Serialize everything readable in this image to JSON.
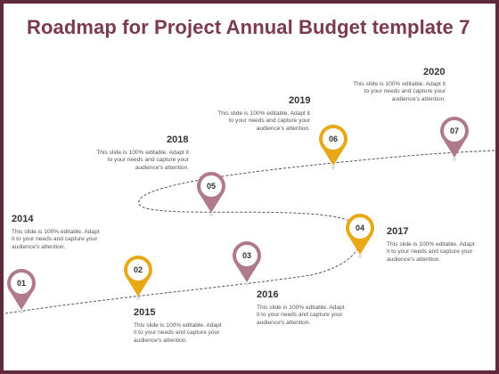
{
  "title": "Roadmap for Project Annual Budget template 7",
  "milestones": [
    {
      "number": "01",
      "year": "2014",
      "text": [
        "This slide is 100% editable. Adapt",
        "it to your needs and capture your",
        "audience's attention."
      ],
      "color": "#b07a8a"
    },
    {
      "number": "02",
      "year": "2015",
      "text": [
        "This slide is 100% editable. Adapt",
        "it to your needs and capture your",
        "audience's attention."
      ],
      "color": "#e8a818"
    },
    {
      "number": "03",
      "year": "2016",
      "text": [
        "This slide is 100% editable. Adapt",
        "it to your needs and capture your",
        "audience's attention."
      ],
      "color": "#b07a8a"
    },
    {
      "number": "04",
      "year": "2017",
      "text": [
        "This slide is 100% editable. Adapt",
        "it to your needs and capture your",
        "audience's attention."
      ],
      "color": "#e8a818"
    },
    {
      "number": "05",
      "year": "2018",
      "text": [
        "This slide is 100% editable. Adapt it",
        "to your needs and capture your",
        "audience's attention."
      ],
      "color": "#b07a8a"
    },
    {
      "number": "06",
      "year": "2019",
      "text": [
        "This slide is 100% editable. Adapt it",
        "to your needs and capture your",
        "audience's attention."
      ],
      "color": "#e8a818"
    },
    {
      "number": "07",
      "year": "2020",
      "text": [
        "This slide is 100% editable. Adapt it",
        "to your needs and capture your",
        "audience's attention."
      ],
      "color": "#b07a8a"
    }
  ],
  "colors": {
    "frame": "#5e2a3c",
    "title": "#7a3b4e",
    "pin_mauve": "#b07a8a",
    "pin_gold": "#e8a818"
  }
}
